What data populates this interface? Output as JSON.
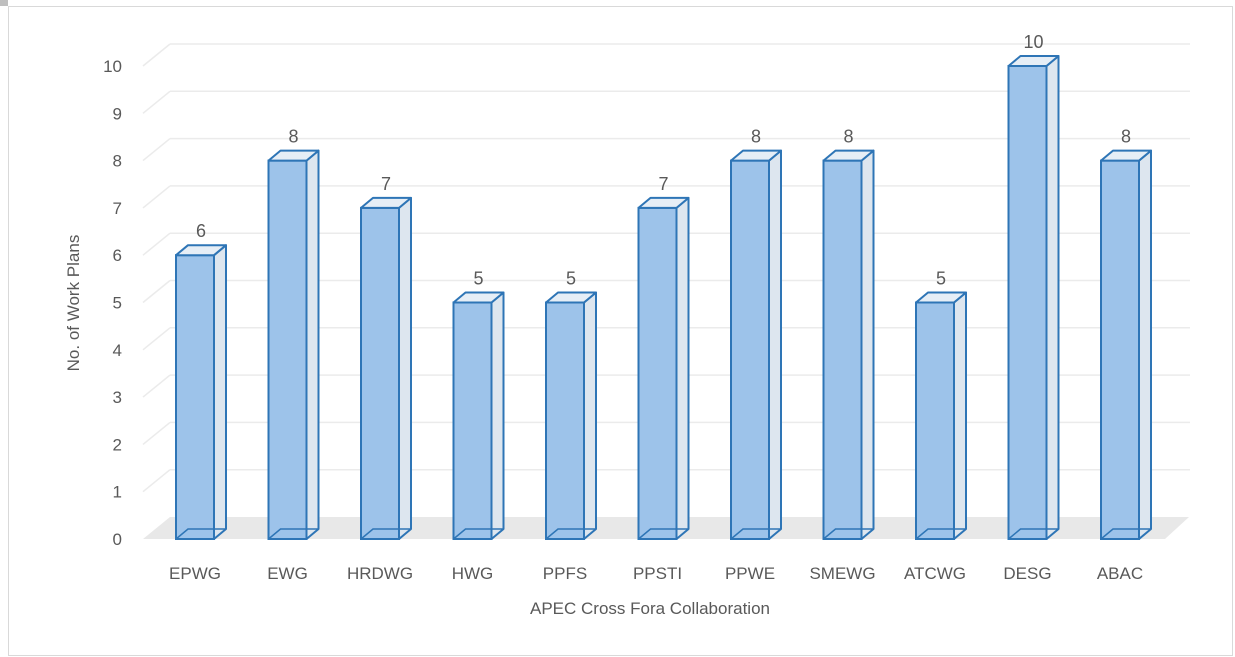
{
  "chart_data": {
    "type": "bar",
    "style": "3d-column",
    "categories": [
      "EPWG",
      "EWG",
      "HRDWG",
      "HWG",
      "PPFS",
      "PPSTI",
      "PPWE",
      "SMEWG",
      "ATCWG",
      "DESG",
      "ABAC"
    ],
    "values": [
      6,
      8,
      7,
      5,
      5,
      7,
      8,
      8,
      5,
      10,
      8
    ],
    "data_labels": [
      "6",
      "8",
      "7",
      "5",
      "5",
      "7",
      "8",
      "8",
      "5",
      "10",
      "8"
    ],
    "yticks": [
      "0",
      "1",
      "2",
      "3",
      "4",
      "5",
      "6",
      "7",
      "8",
      "9",
      "10"
    ],
    "title": "",
    "xlabel": "APEC Cross Fora Collaboration",
    "ylabel": "No. of Work Plans",
    "ylim": [
      0,
      10
    ],
    "grid": true,
    "legend": "none",
    "colors": {
      "bar_face": "#9dc3ea",
      "bar_side": "#dde6ef",
      "bar_top": "#e6eef6",
      "bar_edge": "#2e75b6",
      "gridline": "#ebebeb",
      "floor": "#e8e8e8",
      "text": "#595959"
    }
  }
}
